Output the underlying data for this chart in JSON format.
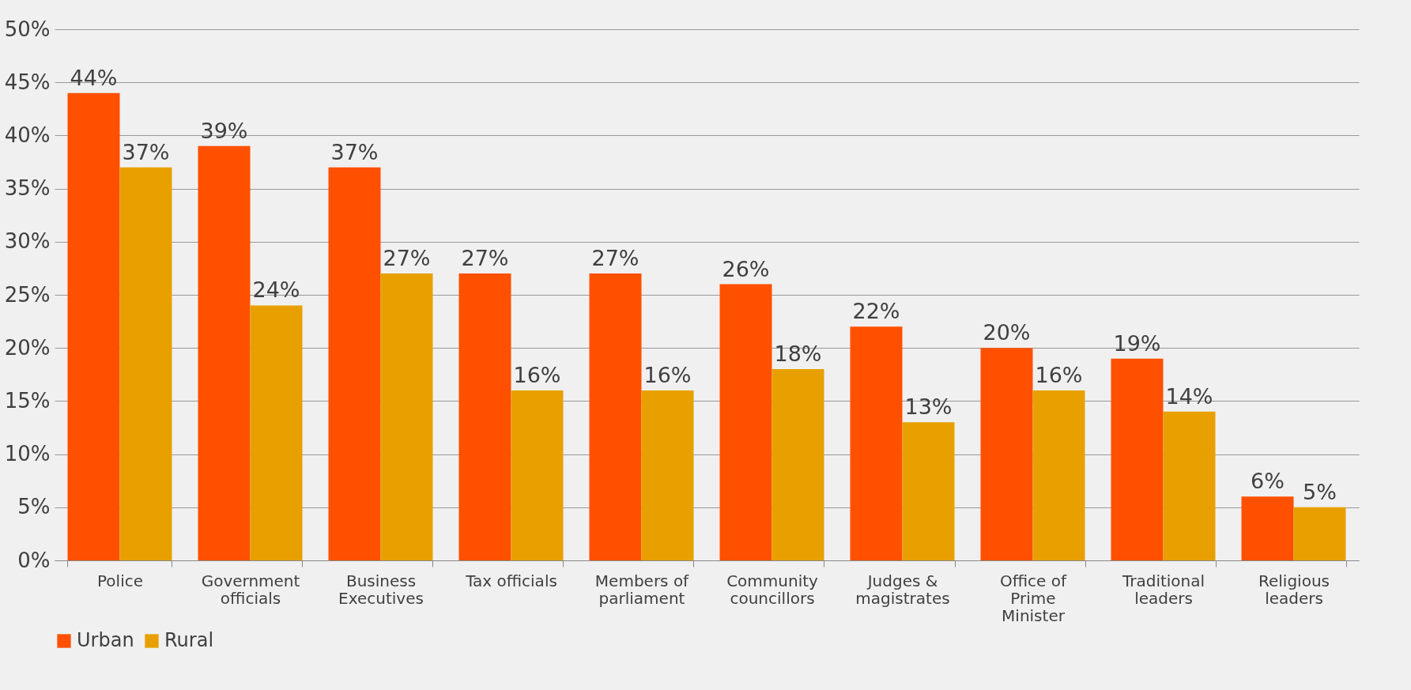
{
  "chart_data": {
    "type": "bar",
    "categories": [
      "Police",
      "Government officials",
      "Business Executives",
      "Tax officials",
      "Members of parliament",
      "Community councillors",
      "Judges & magistrates",
      "Office of Prime Minister",
      "Traditional leaders",
      "Religious leaders"
    ],
    "series": [
      {
        "name": "Urban",
        "color": "#ff5000",
        "values": [
          44,
          39,
          37,
          27,
          27,
          26,
          22,
          20,
          19,
          6
        ],
        "value_labels": [
          "44%",
          "39%",
          "37%",
          "27%",
          "27%",
          "26%",
          "22%",
          "20%",
          "19%",
          "6%"
        ]
      },
      {
        "name": "Rural",
        "color": "#e8a000",
        "values": [
          37,
          24,
          27,
          16,
          16,
          18,
          13,
          16,
          14,
          5
        ],
        "value_labels": [
          "37%",
          "24%",
          "27%",
          "16%",
          "16%",
          "18%",
          "13%",
          "16%",
          "14%",
          "5%"
        ]
      }
    ],
    "ylim": [
      0,
      50
    ],
    "yticks": [
      {
        "value": 0,
        "label": "0%"
      },
      {
        "value": 5,
        "label": "5%"
      },
      {
        "value": 10,
        "label": "10%"
      },
      {
        "value": 15,
        "label": "15%"
      },
      {
        "value": 20,
        "label": "20%"
      },
      {
        "value": 25,
        "label": "25%"
      },
      {
        "value": 30,
        "label": "30%"
      },
      {
        "value": 35,
        "label": "35%"
      },
      {
        "value": 40,
        "label": "40%"
      },
      {
        "value": 45,
        "label": "45%"
      },
      {
        "value": 50,
        "label": "50%"
      }
    ],
    "grid": "y",
    "legend": "bottom"
  }
}
